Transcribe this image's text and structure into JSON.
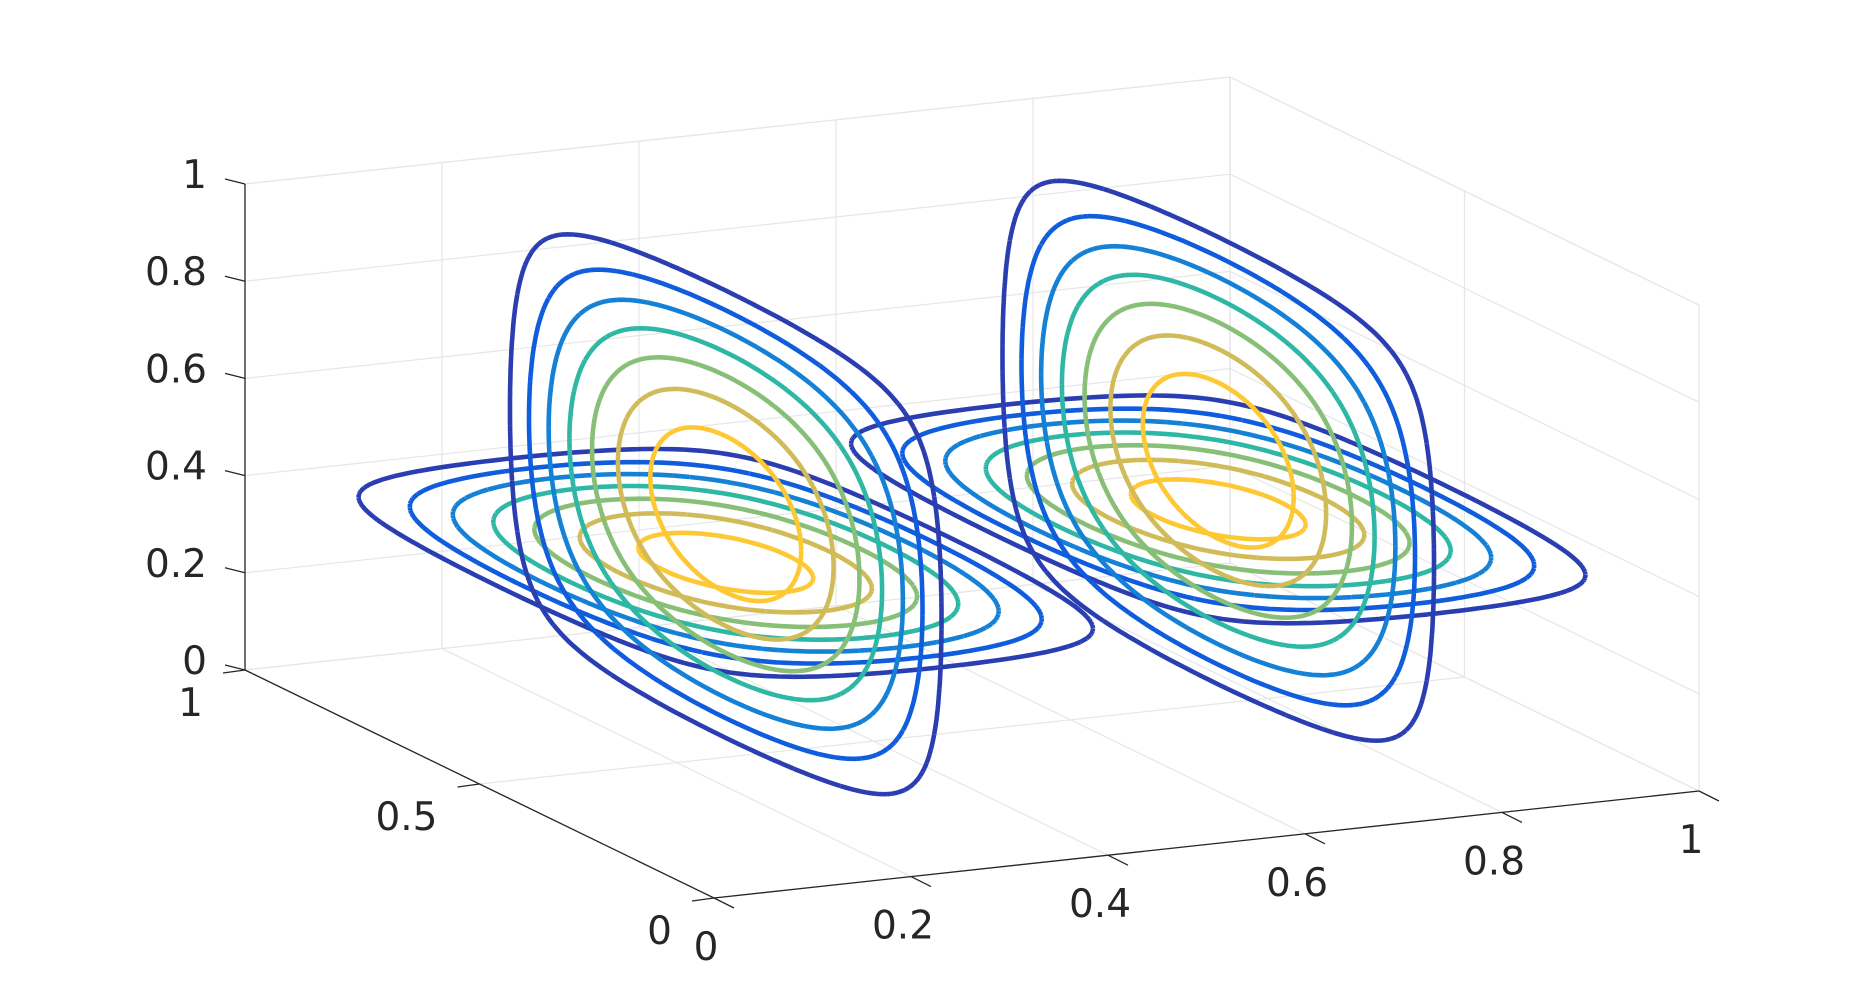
{
  "chart_data": {
    "type": "contour3d-slice",
    "title": "",
    "xlabel": "",
    "ylabel": "",
    "zlabel": "",
    "xlim": [
      0,
      1
    ],
    "ylim": [
      0,
      1
    ],
    "zlim": [
      0,
      1
    ],
    "grid": true,
    "x_ticks": [
      "0",
      "0.2",
      "0.4",
      "0.6",
      "0.8",
      "1"
    ],
    "x_tick_values": [
      0,
      0.2,
      0.4,
      0.6,
      0.8,
      1
    ],
    "y_ticks": [
      "0",
      "0.5",
      "1"
    ],
    "y_tick_values": [
      0,
      0.5,
      1
    ],
    "z_ticks": [
      "0",
      "0.2",
      "0.4",
      "0.6",
      "0.8",
      "1"
    ],
    "z_tick_values": [
      0,
      0.2,
      0.4,
      0.6,
      0.8,
      1
    ],
    "x_slices": [
      0.25,
      0.5,
      0.75
    ],
    "z_slices": [
      0.4
    ],
    "levels": [
      0.1,
      0.2,
      0.3,
      0.4,
      0.5,
      0.6,
      0.7,
      0.8
    ],
    "colormap": [
      "#352a87",
      "#2a3eb1",
      "#0f5cdd",
      "#1481d6",
      "#06a4ca",
      "#2eb7a4",
      "#87bf77",
      "#d1bb59",
      "#fec832",
      "#f9fb0e"
    ]
  }
}
